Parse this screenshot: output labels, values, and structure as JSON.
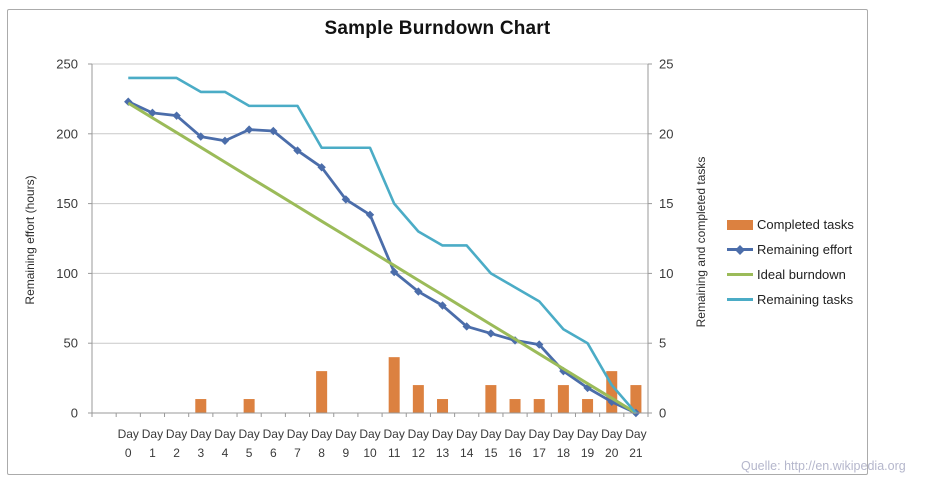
{
  "title": "Sample Burndown Chart",
  "source_note": "Quelle: http://en.wikipedia.org",
  "left_axis": {
    "label": "Remaining effort (hours)",
    "min": 0,
    "max": 250,
    "step": 50,
    "tick_labels": [
      "0",
      "50",
      "100",
      "150",
      "200",
      "250"
    ]
  },
  "right_axis": {
    "label": "Remaining and completed tasks",
    "min": 0,
    "max": 25,
    "step": 5,
    "tick_labels": [
      "0",
      "5",
      "10",
      "15",
      "20",
      "25"
    ]
  },
  "colors": {
    "bar_orange": "#DC8140",
    "effort_blue": "#4B6DAA",
    "ideal_green": "#9BBB59",
    "tasks_teal": "#4BACC6",
    "gridline": "#C9C9C9",
    "axis_line": "#999999",
    "tick_text": "#3A3A3A"
  },
  "chart_data": {
    "type": "combo",
    "grid": true,
    "legend_position": "right",
    "left_ylim": [
      0,
      250
    ],
    "right_ylim": [
      0,
      25
    ],
    "categories": [
      "Day 0",
      "Day 1",
      "Day 2",
      "Day 3",
      "Day 4",
      "Day 5",
      "Day 6",
      "Day 7",
      "Day 8",
      "Day 9",
      "Day 10",
      "Day 11",
      "Day 12",
      "Day 13",
      "Day 14",
      "Day 15",
      "Day 16",
      "Day 17",
      "Day 18",
      "Day 19",
      "Day 20",
      "Day 21"
    ],
    "series": [
      {
        "name": "Completed tasks",
        "type": "bar",
        "axis": "right",
        "color": "#DC8140",
        "values": [
          0,
          0,
          0,
          1,
          0,
          1,
          0,
          0,
          3,
          0,
          0,
          4,
          2,
          1,
          0,
          2,
          1,
          1,
          2,
          1,
          3,
          2
        ]
      },
      {
        "name": "Remaining effort",
        "type": "line",
        "marker": "diamond",
        "axis": "left",
        "color": "#4B6DAA",
        "values": [
          223,
          215,
          213,
          198,
          195,
          203,
          202,
          188,
          176,
          153,
          142,
          101,
          87,
          77,
          62,
          57,
          52,
          49,
          30,
          18,
          8,
          0
        ]
      },
      {
        "name": "Ideal burndown",
        "type": "line",
        "axis": "left",
        "color": "#9BBB59",
        "values": [
          222,
          211.4,
          200.9,
          190.3,
          179.7,
          169.1,
          158.6,
          148,
          137.4,
          126.9,
          116.3,
          105.7,
          95.1,
          84.6,
          74,
          63.4,
          52.9,
          42.3,
          31.7,
          21.1,
          10.6,
          0
        ]
      },
      {
        "name": "Remaining tasks",
        "type": "line",
        "axis": "right",
        "color": "#4BACC6",
        "values": [
          24,
          24,
          24,
          23,
          23,
          22,
          22,
          22,
          19,
          19,
          19,
          15,
          13,
          12,
          12,
          10,
          9,
          8,
          6,
          5,
          2,
          0
        ]
      }
    ]
  }
}
